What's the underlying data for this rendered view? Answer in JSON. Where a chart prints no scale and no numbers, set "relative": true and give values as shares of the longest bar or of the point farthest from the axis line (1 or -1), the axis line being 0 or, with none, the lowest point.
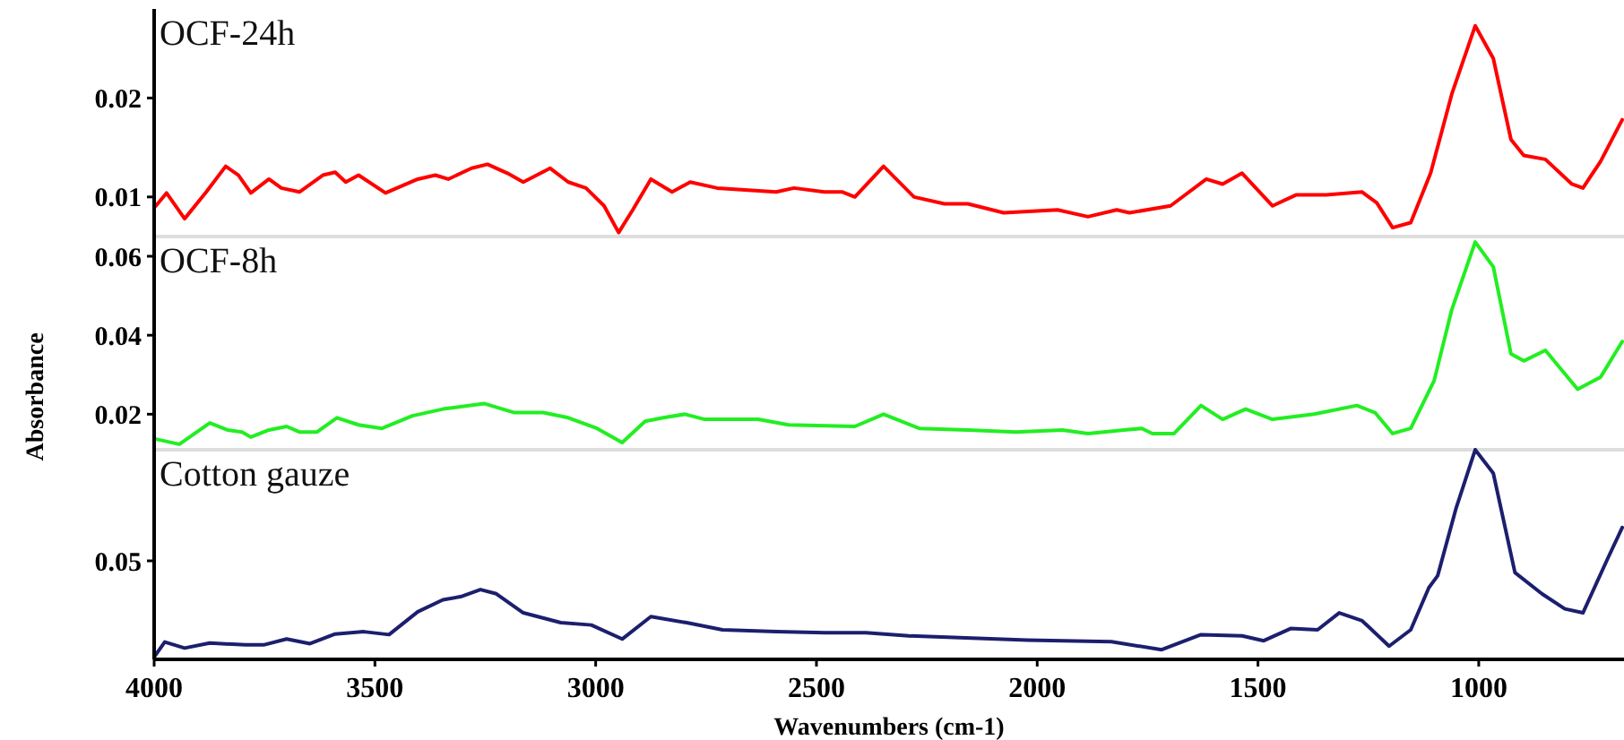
{
  "chart_data": [
    {
      "type": "line",
      "xlim": [
        4000,
        671
      ],
      "ylim": [
        0.006,
        0.029
      ],
      "yticks": [
        0.01,
        0.02
      ],
      "tick_labels": "y",
      "grid": false,
      "series": [
        {
          "name": "OCF-24h",
          "color": "#ff0000",
          "x": [
            3996,
            3972,
            3931,
            3882,
            3838,
            3809,
            3781,
            3740,
            3712,
            3671,
            3618,
            3590,
            3566,
            3537,
            3476,
            3403,
            3363,
            3334,
            3281,
            3245,
            3200,
            3164,
            3103,
            3062,
            3022,
            2981,
            2948,
            2916,
            2875,
            2827,
            2786,
            2725,
            2591,
            2551,
            2482,
            2441,
            2413,
            2348,
            2279,
            2210,
            2157,
            2076,
            1954,
            1885,
            1820,
            1791,
            1698,
            1617,
            1580,
            1536,
            1467,
            1414,
            1345,
            1264,
            1231,
            1195,
            1154,
            1109,
            1061,
            1008,
            967,
            927,
            898,
            849,
            789,
            764,
            724,
            675
          ],
          "values": [
            0.0091,
            0.0104,
            0.0078,
            0.0105,
            0.0131,
            0.0122,
            0.0104,
            0.0118,
            0.0109,
            0.0105,
            0.0122,
            0.0125,
            0.0115,
            0.0122,
            0.0104,
            0.0118,
            0.0122,
            0.0118,
            0.0129,
            0.0133,
            0.0124,
            0.0115,
            0.0129,
            0.0115,
            0.0109,
            0.0091,
            0.0064,
            0.0087,
            0.0118,
            0.0105,
            0.0115,
            0.0109,
            0.0105,
            0.0109,
            0.0105,
            0.0105,
            0.01,
            0.0131,
            0.01,
            0.0093,
            0.0093,
            0.0084,
            0.0087,
            0.008,
            0.0087,
            0.0084,
            0.0091,
            0.0118,
            0.0113,
            0.0124,
            0.0091,
            0.0102,
            0.0102,
            0.0105,
            0.0094,
            0.0069,
            0.0074,
            0.0124,
            0.0204,
            0.0273,
            0.024,
            0.0158,
            0.0142,
            0.0138,
            0.0113,
            0.0109,
            0.0136,
            0.0178
          ]
        }
      ]
    },
    {
      "type": "line",
      "xlim": [
        4000,
        671
      ],
      "ylim": [
        0.011,
        0.065
      ],
      "yticks": [
        0.02,
        0.04,
        0.06
      ],
      "tick_labels": "y",
      "grid": false,
      "ylabel": "Absorbance",
      "series": [
        {
          "name": "OCF-8h",
          "color": "#22ee22",
          "x": [
            3996,
            3943,
            3874,
            3834,
            3801,
            3781,
            3740,
            3700,
            3671,
            3631,
            3586,
            3537,
            3484,
            3415,
            3346,
            3253,
            3184,
            3119,
            3062,
            2997,
            2940,
            2888,
            2847,
            2798,
            2753,
            2632,
            2563,
            2413,
            2348,
            2267,
            2157,
            2048,
            1943,
            1885,
            1804,
            1763,
            1739,
            1690,
            1629,
            1580,
            1528,
            1467,
            1373,
            1276,
            1235,
            1195,
            1154,
            1101,
            1061,
            1008,
            967,
            927,
            898,
            849,
            776,
            724,
            675
          ],
          "values": [
            0.0137,
            0.0124,
            0.0178,
            0.016,
            0.0155,
            0.0142,
            0.016,
            0.0169,
            0.0155,
            0.0155,
            0.0191,
            0.0173,
            0.0164,
            0.0196,
            0.0213,
            0.0227,
            0.0204,
            0.0204,
            0.0191,
            0.0164,
            0.0128,
            0.0182,
            0.0191,
            0.02,
            0.0187,
            0.0187,
            0.0173,
            0.0169,
            0.02,
            0.0164,
            0.016,
            0.0155,
            0.016,
            0.0151,
            0.016,
            0.0164,
            0.0151,
            0.0151,
            0.0222,
            0.0187,
            0.0213,
            0.0187,
            0.02,
            0.0222,
            0.0204,
            0.0151,
            0.0164,
            0.0285,
            0.0465,
            0.0636,
            0.0573,
            0.0353,
            0.0335,
            0.0362,
            0.0263,
            0.0294,
            0.0384
          ]
        }
      ]
    },
    {
      "type": "line",
      "relative": true,
      "xlim": [
        4000,
        671
      ],
      "xticks": [
        4000,
        3500,
        3000,
        2500,
        2000,
        1500,
        1000
      ],
      "annotations": [
        "0.05"
      ],
      "grid": false,
      "xlabel": "Wavenumbers (cm-1)",
      "series": [
        {
          "name": "Cotton gauze",
          "color": "#1c1f6e",
          "x": [
            4000,
            3976,
            3931,
            3874,
            3793,
            3752,
            3700,
            3647,
            3590,
            3525,
            3468,
            3403,
            3346,
            3306,
            3261,
            3225,
            3164,
            3079,
            3010,
            2940,
            2875,
            2794,
            2713,
            2591,
            2481,
            2388,
            2291,
            2023,
            1832,
            1718,
            1629,
            1536,
            1487,
            1426,
            1365,
            1316,
            1264,
            1203,
            1154,
            1113,
            1093,
            1052,
            1008,
            967,
            918,
            857,
            805,
            764,
            707,
            675
          ],
          "values": [
            0.011,
            0.083,
            0.054,
            0.078,
            0.069,
            0.069,
            0.097,
            0.075,
            0.121,
            0.132,
            0.118,
            0.227,
            0.284,
            0.299,
            0.333,
            0.313,
            0.222,
            0.175,
            0.164,
            0.097,
            0.204,
            0.175,
            0.141,
            0.132,
            0.127,
            0.127,
            0.112,
            0.092,
            0.084,
            0.046,
            0.118,
            0.112,
            0.089,
            0.147,
            0.141,
            0.222,
            0.184,
            0.063,
            0.141,
            0.342,
            0.399,
            0.716,
            1,
            0.888,
            0.414,
            0.313,
            0.241,
            0.222,
            0.485,
            0.629
          ]
        }
      ]
    }
  ]
}
